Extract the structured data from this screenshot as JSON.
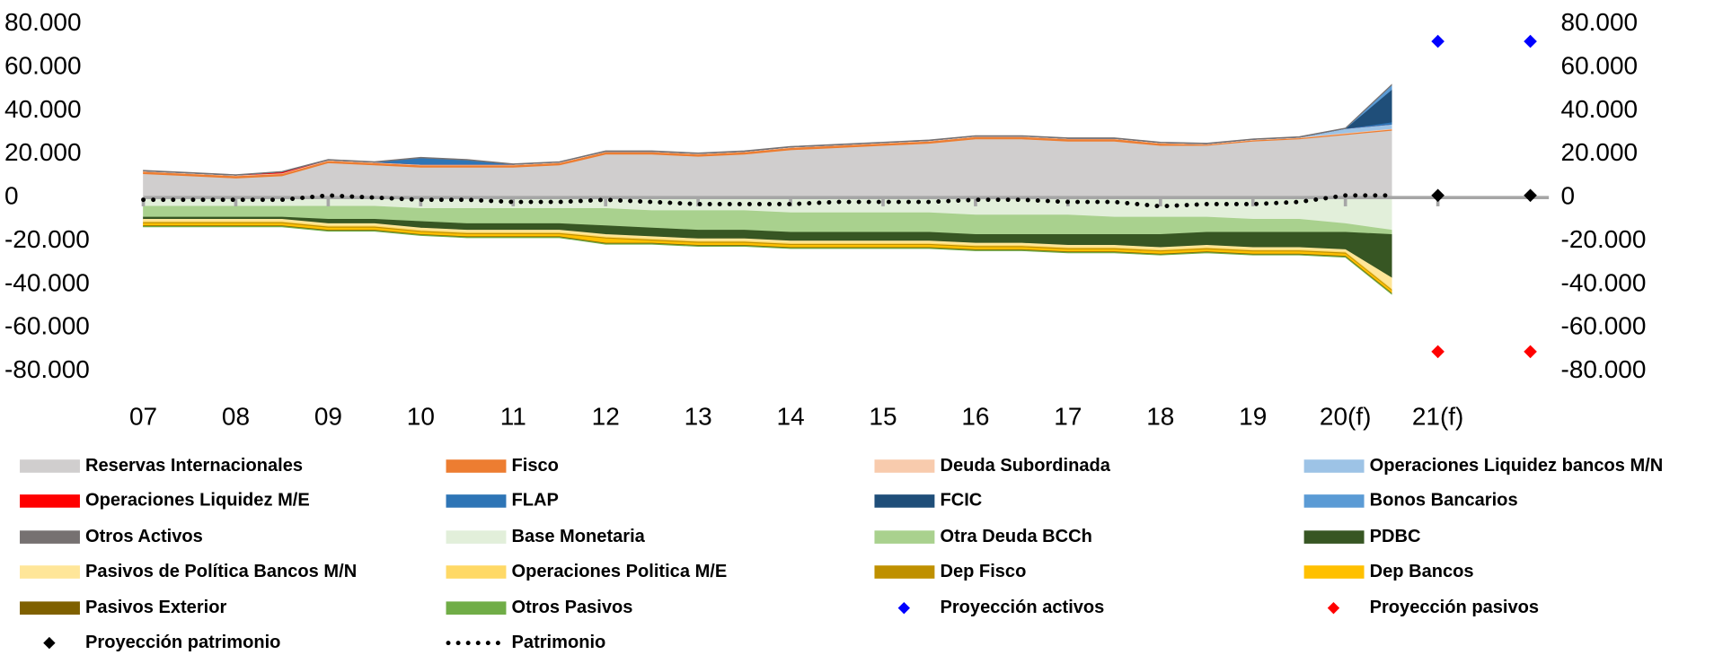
{
  "chart_data": {
    "type": "area",
    "x": [
      2007,
      2007.5,
      2008,
      2008.5,
      2009,
      2009.5,
      2010,
      2010.5,
      2011,
      2011.5,
      2012,
      2012.5,
      2013,
      2013.5,
      2014,
      2014.5,
      2015,
      2015.5,
      2016,
      2016.5,
      2017,
      2017.5,
      2018,
      2018.5,
      2019,
      2019.5,
      2020,
      2020.5
    ],
    "xlim": [
      2007,
      2022.2
    ],
    "xticks": [
      {
        "value": 2007,
        "label": "07"
      },
      {
        "value": 2008,
        "label": "08"
      },
      {
        "value": 2009,
        "label": "09"
      },
      {
        "value": 2010,
        "label": "10"
      },
      {
        "value": 2011,
        "label": "11"
      },
      {
        "value": 2012,
        "label": "12"
      },
      {
        "value": 2013,
        "label": "13"
      },
      {
        "value": 2014,
        "label": "14"
      },
      {
        "value": 2015,
        "label": "15"
      },
      {
        "value": 2016,
        "label": "16"
      },
      {
        "value": 2017,
        "label": "17"
      },
      {
        "value": 2018,
        "label": "18"
      },
      {
        "value": 2019,
        "label": "19"
      },
      {
        "value": 2020,
        "label": "20(f)"
      },
      {
        "value": 2021,
        "label": "21(f)"
      }
    ],
    "ylim": [
      -80000,
      80000
    ],
    "yticks": [
      {
        "value": 80000,
        "label": "80.000"
      },
      {
        "value": 60000,
        "label": "60.000"
      },
      {
        "value": 40000,
        "label": "40.000"
      },
      {
        "value": 20000,
        "label": "20.000"
      },
      0,
      {
        "value": -20000,
        "label": "-20.000"
      },
      {
        "value": -40000,
        "label": "-40.000"
      },
      {
        "value": -60000,
        "label": "-60.000"
      },
      {
        "value": -80000,
        "label": "-80.000"
      }
    ],
    "y2lim": [
      -80000,
      80000
    ],
    "y2ticks": [
      {
        "value": 80000,
        "label": "80.000"
      },
      {
        "value": 60000,
        "label": "60.000"
      },
      {
        "value": 40000,
        "label": "40.000"
      },
      {
        "value": 20000,
        "label": "20.000"
      },
      0,
      {
        "value": -20000,
        "label": "-20.000"
      },
      {
        "value": -40000,
        "label": "-40.000"
      },
      {
        "value": -60000,
        "label": "-60.000"
      },
      {
        "value": -80000,
        "label": "-80.000"
      }
    ],
    "legend": "bottom",
    "series": [
      {
        "name": "Reservas Internacionales",
        "color": "#d0cece",
        "stack": "pos",
        "values": [
          11000,
          10000,
          9000,
          10000,
          16000,
          15000,
          14000,
          14000,
          14000,
          15000,
          20000,
          20000,
          19000,
          20000,
          22000,
          23000,
          24000,
          25000,
          27000,
          27000,
          26000,
          26000,
          24000,
          24000,
          26000,
          27000,
          29000,
          31000
        ]
      },
      {
        "name": "Fisco",
        "color": "#ed7d31",
        "stack": "pos",
        "values": [
          1000,
          1000,
          1000,
          1000,
          1000,
          1000,
          1000,
          1000,
          1000,
          1000,
          1000,
          1000,
          1000,
          1000,
          1000,
          1000,
          1000,
          1000,
          1000,
          1000,
          1000,
          1000,
          1000,
          500,
          500,
          500,
          500,
          500
        ]
      },
      {
        "name": "Deuda Subordinada",
        "color": "#f8cbad",
        "stack": "pos",
        "values": [
          300,
          300,
          300,
          300,
          300,
          300,
          300,
          300,
          300,
          300,
          300,
          300,
          300,
          300,
          300,
          300,
          300,
          300,
          300,
          300,
          300,
          300,
          300,
          300,
          300,
          300,
          300,
          300
        ]
      },
      {
        "name": "Operaciones Liquidez bancos M/N",
        "color": "#9dc3e6",
        "stack": "pos",
        "values": [
          0,
          0,
          0,
          0,
          0,
          0,
          0,
          0,
          0,
          0,
          0,
          0,
          0,
          0,
          0,
          0,
          0,
          0,
          0,
          0,
          0,
          0,
          0,
          0,
          0,
          0,
          2000,
          2000
        ]
      },
      {
        "name": "Operaciones Liquidez M/E",
        "color": "#ff0000",
        "stack": "pos",
        "values": [
          0,
          0,
          0,
          500,
          0,
          0,
          0,
          0,
          0,
          0,
          0,
          0,
          0,
          0,
          0,
          0,
          0,
          0,
          0,
          0,
          0,
          0,
          0,
          0,
          0,
          0,
          0,
          0
        ]
      },
      {
        "name": "FLAP",
        "color": "#2e75b6",
        "stack": "pos",
        "values": [
          0,
          0,
          0,
          0,
          0,
          0,
          3000,
          2000,
          0,
          0,
          0,
          0,
          0,
          0,
          0,
          0,
          0,
          0,
          0,
          0,
          0,
          0,
          0,
          0,
          0,
          0,
          0,
          1000
        ]
      },
      {
        "name": "FCIC",
        "color": "#1f4e79",
        "stack": "pos",
        "values": [
          0,
          0,
          0,
          0,
          0,
          0,
          0,
          0,
          0,
          0,
          0,
          0,
          0,
          0,
          0,
          0,
          0,
          0,
          0,
          0,
          0,
          0,
          0,
          0,
          0,
          0,
          0,
          15000
        ]
      },
      {
        "name": "Bonos Bancarios",
        "color": "#5b9bd5",
        "stack": "pos",
        "values": [
          0,
          0,
          0,
          0,
          0,
          0,
          0,
          0,
          0,
          0,
          0,
          0,
          0,
          0,
          0,
          0,
          0,
          0,
          0,
          0,
          0,
          0,
          0,
          0,
          0,
          0,
          0,
          2000
        ]
      },
      {
        "name": "Otros Activos",
        "color": "#767171",
        "stack": "pos",
        "values": [
          300,
          300,
          300,
          300,
          300,
          300,
          300,
          300,
          300,
          300,
          300,
          300,
          300,
          300,
          300,
          300,
          300,
          300,
          300,
          300,
          300,
          300,
          300,
          300,
          300,
          300,
          300,
          300
        ]
      },
      {
        "name": "Base Monetaria",
        "color": "#e2efda",
        "stack": "neg",
        "values": [
          -4000,
          -4000,
          -4000,
          -4000,
          -4000,
          -4000,
          -5000,
          -5000,
          -5000,
          -5000,
          -5000,
          -6000,
          -6000,
          -6000,
          -7000,
          -7000,
          -7000,
          -7000,
          -8000,
          -8000,
          -8000,
          -9000,
          -9000,
          -9000,
          -10000,
          -10000,
          -12000,
          -15000
        ]
      },
      {
        "name": "Otra Deuda BCCh",
        "color": "#a9d18e",
        "stack": "neg",
        "values": [
          -5000,
          -5000,
          -5000,
          -5000,
          -6000,
          -6000,
          -6000,
          -7000,
          -7000,
          -7000,
          -8000,
          -8000,
          -9000,
          -9000,
          -9000,
          -9000,
          -9000,
          -9000,
          -9000,
          -9000,
          -9000,
          -8000,
          -8000,
          -7000,
          -6000,
          -6000,
          -4000,
          -2000
        ]
      },
      {
        "name": "PDBC",
        "color": "#375623",
        "stack": "neg",
        "values": [
          -1000,
          -1000,
          -1000,
          -1000,
          -2000,
          -2000,
          -3000,
          -3000,
          -3000,
          -3000,
          -4000,
          -4000,
          -4000,
          -4000,
          -4000,
          -4000,
          -4000,
          -4000,
          -4000,
          -4000,
          -5000,
          -5000,
          -6000,
          -6000,
          -7000,
          -7000,
          -8000,
          -20000
        ]
      },
      {
        "name": "Pasivos de Política Bancos M/N",
        "color": "#ffe699",
        "stack": "neg",
        "values": [
          -1000,
          -1000,
          -1000,
          -1000,
          -1000,
          -1000,
          -1000,
          -1000,
          -1000,
          -1000,
          -1000,
          -1000,
          -1000,
          -1000,
          -1000,
          -1000,
          -1000,
          -1000,
          -1000,
          -1000,
          -1000,
          -1000,
          -1000,
          -1000,
          -1000,
          -1000,
          -1000,
          -5000
        ]
      },
      {
        "name": "Operaciones Politica M/E",
        "color": "#ffd966",
        "stack": "neg",
        "values": [
          -500,
          -500,
          -500,
          -500,
          -500,
          -500,
          -500,
          -500,
          -500,
          -500,
          -500,
          -500,
          -500,
          -500,
          -500,
          -500,
          -500,
          -500,
          -500,
          -500,
          -500,
          -500,
          -500,
          -500,
          -500,
          -500,
          -500,
          -500
        ]
      },
      {
        "name": "Dep Fisco",
        "color": "#bf9000",
        "stack": "neg",
        "values": [
          -500,
          -500,
          -500,
          -500,
          -500,
          -500,
          -500,
          -500,
          -500,
          -500,
          -500,
          -500,
          -500,
          -500,
          -500,
          -500,
          -500,
          -500,
          -500,
          -500,
          -500,
          -500,
          -500,
          -500,
          -500,
          -500,
          -500,
          -500
        ]
      },
      {
        "name": "Dep Bancos",
        "color": "#ffc000",
        "stack": "neg",
        "values": [
          -1000,
          -1000,
          -1000,
          -1000,
          -1000,
          -1000,
          -1000,
          -1000,
          -1000,
          -1000,
          -2000,
          -1000,
          -1000,
          -1000,
          -1000,
          -1000,
          -1000,
          -1000,
          -1000,
          -1000,
          -1000,
          -1000,
          -1000,
          -1000,
          -1000,
          -1000,
          -1000,
          -1000
        ]
      },
      {
        "name": "Pasivos Exterior",
        "color": "#7f6000",
        "stack": "neg",
        "values": [
          -300,
          -300,
          -300,
          -300,
          -300,
          -300,
          -300,
          -300,
          -300,
          -300,
          -300,
          -300,
          -300,
          -300,
          -300,
          -300,
          -300,
          -300,
          -300,
          -300,
          -300,
          -300,
          -300,
          -300,
          -300,
          -300,
          -300,
          -300
        ]
      },
      {
        "name": "Otros Pasivos",
        "color": "#70ad47",
        "stack": "neg",
        "values": [
          -200,
          -200,
          -200,
          -200,
          -200,
          -200,
          -200,
          -200,
          -200,
          -200,
          -200,
          -200,
          -200,
          -200,
          -200,
          -200,
          -200,
          -200,
          -200,
          -200,
          -200,
          -200,
          -200,
          -200,
          -200,
          -200,
          -200,
          -200
        ]
      },
      {
        "name": "Proyección activos",
        "color": "#0000ff",
        "kind": "scatter",
        "x": [
          2021,
          2022
        ],
        "values": [
          72000,
          72000
        ]
      },
      {
        "name": "Proyección pasivos",
        "color": "#ff0000",
        "kind": "scatter",
        "x": [
          2021,
          2022
        ],
        "values": [
          -71000,
          -71000
        ]
      },
      {
        "name": "Proyección patrimonio",
        "color": "#000000",
        "kind": "scatter",
        "x": [
          2021,
          2022
        ],
        "values": [
          1000,
          1000
        ]
      },
      {
        "name": "Patrimonio",
        "color": "#000000",
        "kind": "dotted-line",
        "values": [
          -1000,
          -1000,
          -1000,
          -1000,
          1000,
          0,
          -1000,
          -1000,
          -2000,
          -2000,
          -1000,
          -2000,
          -3000,
          -3000,
          -3000,
          -2000,
          -2000,
          -2000,
          -1000,
          -1000,
          -2000,
          -2000,
          -4000,
          -3000,
          -3000,
          -2000,
          1000,
          1000
        ]
      }
    ]
  }
}
